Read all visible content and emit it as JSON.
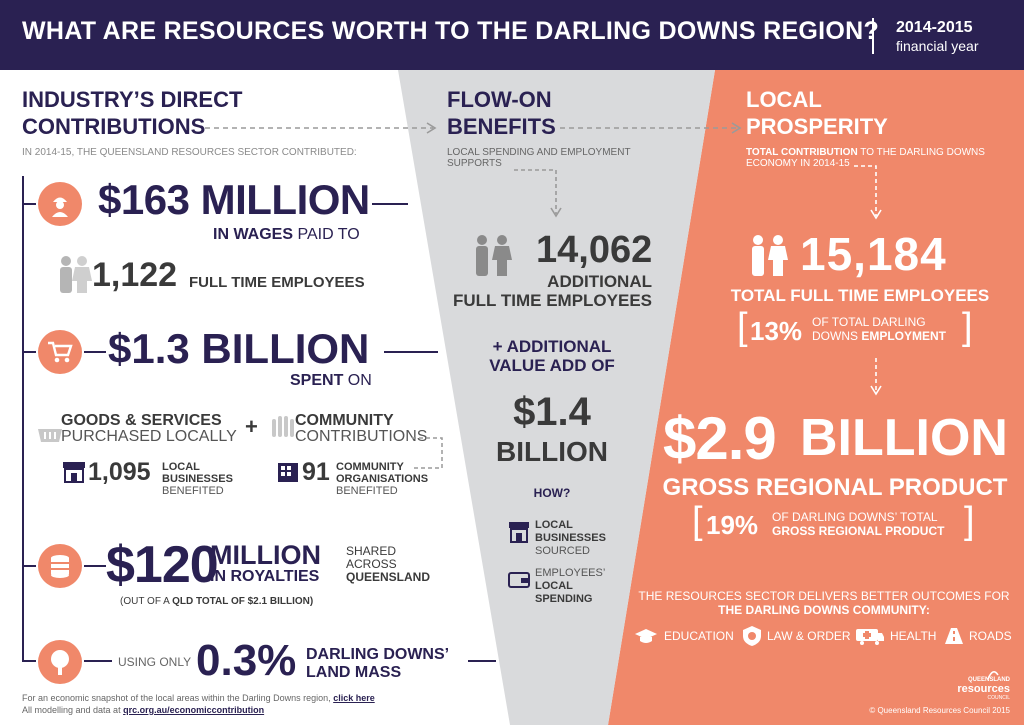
{
  "header": {
    "title": "WHAT ARE RESOURCES WORTH TO THE DARLING DOWNS REGION?",
    "year": "2014-2015",
    "period": "financial year"
  },
  "left": {
    "heading_line1": "INDUSTRY’S DIRECT",
    "heading_line2": "CONTRIBUTIONS",
    "intro": "IN 2014-15, THE QUEENSLAND RESOURCES SECTOR CONTRIBUTED:",
    "wages_value": "$163 MILLION",
    "wages_label_bold": "IN WAGES",
    "wages_label_light": "PAID TO",
    "employees_value": "1,122",
    "employees_label": "FULL TIME EMPLOYEES",
    "spent_value": "$1.3 BILLION",
    "spent_label_bold": "SPENT",
    "spent_label_light": "ON",
    "goods_bold": "GOODS & SERVICES",
    "goods_light": "PURCHASED LOCALLY",
    "plus": "+",
    "community_bold": "COMMUNITY",
    "community_light": "CONTRIBUTIONS",
    "businesses_value": "1,095",
    "businesses_bold_1": "LOCAL",
    "businesses_bold_2": "BUSINESSES",
    "businesses_light": "BENEFITED",
    "orgs_value": "91",
    "orgs_bold_1": "COMMUNITY",
    "orgs_bold_2": "ORGANISATIONS",
    "orgs_light": "BENEFITED",
    "royalty_amount": "$120",
    "royalty_million": "MILLION",
    "royalty_in": "IN ROYALTIES",
    "royalty_shared": "SHARED",
    "royalty_across": "ACROSS",
    "royalty_qld": "QUEENSLAND",
    "royalty_note_light": "(OUT OF A",
    "royalty_note_bold": "QLD TOTAL OF $2.1 BILLION)",
    "land_using": "USING ONLY",
    "land_value": "0.3%",
    "land_label_1": "DARLING DOWNS’",
    "land_label_2": "LAND MASS",
    "footer_1": "For an economic snapshot of the local areas within the Darling Downs region,",
    "footer_1_link": "click here",
    "footer_2": "All modelling and data at",
    "footer_2_link": "qrc.org.au/economiccontribution"
  },
  "middle": {
    "heading_line1": "FLOW-ON",
    "heading_line2": "BENEFITS",
    "intro": "LOCAL SPENDING AND EMPLOYMENT SUPPORTS",
    "employees_value": "14,062",
    "employees_label_1": "ADDITIONAL",
    "employees_label_2": "FULL TIME EMPLOYEES",
    "value_add_1": "+ ADDITIONAL",
    "value_add_2": "VALUE ADD OF",
    "value_amount": "$1.4",
    "value_unit": "BILLION",
    "how": "HOW?",
    "local_bold_1": "LOCAL",
    "local_bold_2": "BUSINESSES",
    "local_light": "SOURCED",
    "emp_light": "EMPLOYEES’",
    "emp_bold_1": "LOCAL",
    "emp_bold_2": "SPENDING"
  },
  "right": {
    "heading_line1": "LOCAL",
    "heading_line2": "PROSPERITY",
    "intro_bold": "TOTAL CONTRIBUTION",
    "intro_light": "TO THE DARLING DOWNS ECONOMY IN 2014-15",
    "employees_value": "15,184",
    "employees_label": "TOTAL FULL TIME EMPLOYEES",
    "emp_pct": "13%",
    "emp_pct_light": "OF TOTAL DARLING",
    "emp_pct_light2": "DOWNS",
    "emp_pct_bold": "EMPLOYMENT",
    "grp_value": "$2.9",
    "grp_unit": "BILLION",
    "grp_label": "GROSS REGIONAL PRODUCT",
    "grp_pct": "19%",
    "grp_pct_light": "OF DARLING DOWNS’ TOTAL",
    "grp_pct_bold": "GROSS REGIONAL PRODUCT",
    "outcome_1": "THE RESOURCES SECTOR DELIVERS BETTER OUTCOMES FOR",
    "outcome_2": "THE DARLING DOWNS COMMUNITY:",
    "cat_education": "EDUCATION",
    "cat_law": "LAW & ORDER",
    "cat_health": "HEALTH",
    "cat_roads": "ROADS",
    "logo_1": "QUEENSLAND",
    "logo_2": "resources",
    "logo_3": "COUNCIL",
    "copyright": "© Queensland Resources Council 2015"
  },
  "colors": {
    "purple": "#2a2152",
    "orange": "#f0886a",
    "grey_panel": "#d9dadc",
    "text_grey": "#666666"
  }
}
